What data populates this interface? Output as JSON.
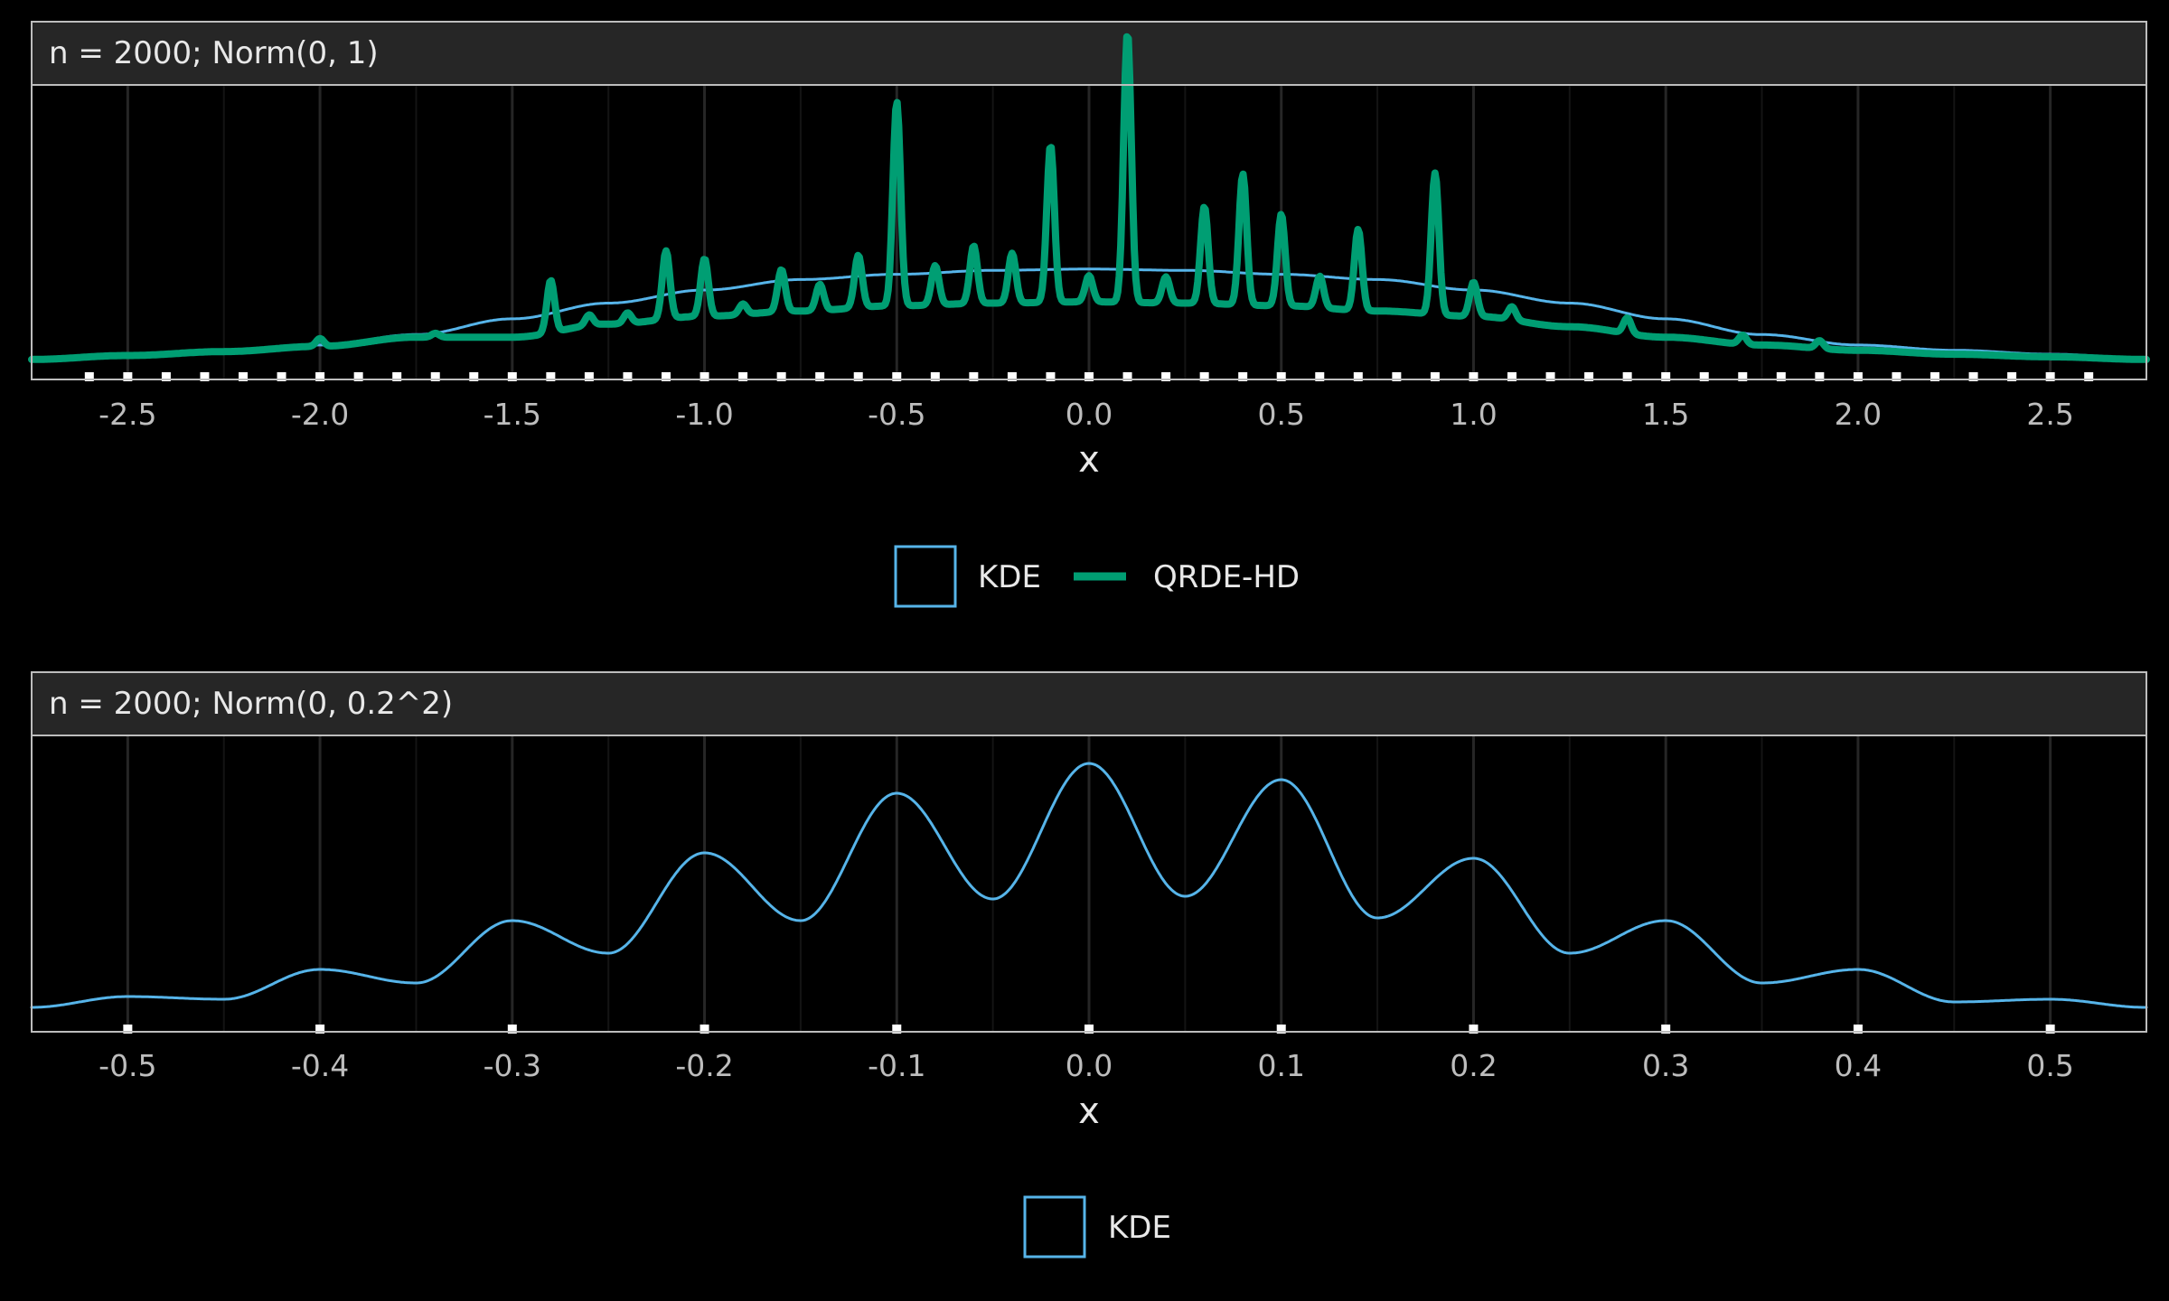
{
  "colors": {
    "background": "#000000",
    "strip": "#262626",
    "panel_border": "#bdbdbd",
    "grid_major": "#262626",
    "grid_minor": "#141414",
    "kde": "#56B4E9",
    "qrde": "#009E73",
    "rug": "#ffffff",
    "text": "#e8e8e8",
    "tick_text": "#bdbdbd"
  },
  "chart_data": [
    {
      "type": "line",
      "title": "n = 2000; Norm(0, 1)",
      "xlabel": "x",
      "ylabel": "",
      "xlim": [
        -2.75,
        2.75
      ],
      "ylim": [
        0,
        1
      ],
      "x_ticks": [
        -2.5,
        -2.0,
        -1.5,
        -1.0,
        -0.5,
        0.0,
        0.5,
        1.0,
        1.5,
        2.0,
        2.5
      ],
      "x_tick_labels": [
        "-2.5",
        "-2.0",
        "-1.5",
        "-1.0",
        "-0.5",
        "0.0",
        "0.5",
        "1.0",
        "1.5",
        "2.0",
        "2.5"
      ],
      "grid": true,
      "y_axis_labels": false,
      "rug_start": -2.6,
      "rug_step": 0.1,
      "rug_count": 53,
      "legend": {
        "position": "bottom",
        "entries": [
          {
            "label": "KDE",
            "key": "box",
            "color": "#56B4E9"
          },
          {
            "label": "QRDE-HD",
            "key": "line",
            "color": "#009E73"
          }
        ]
      },
      "series": [
        {
          "name": "KDE",
          "color": "#56B4E9",
          "stroke_width": 3,
          "x": [
            -2.75,
            -2.5,
            -2.25,
            -2.0,
            -1.75,
            -1.5,
            -1.25,
            -1.0,
            -0.75,
            -0.5,
            -0.25,
            0.0,
            0.25,
            0.5,
            0.75,
            1.0,
            1.25,
            1.5,
            1.75,
            2.0,
            2.25,
            2.5,
            2.75
          ],
          "y": [
            0.04,
            0.055,
            0.07,
            0.09,
            0.13,
            0.19,
            0.25,
            0.3,
            0.34,
            0.36,
            0.375,
            0.38,
            0.375,
            0.36,
            0.34,
            0.3,
            0.25,
            0.19,
            0.13,
            0.09,
            0.07,
            0.055,
            0.04
          ]
        },
        {
          "name": "QRDE-HD",
          "color": "#009E73",
          "stroke_width": 8,
          "x": [
            -2.75,
            -2.5,
            -2.25,
            -2.0,
            -1.75,
            -1.5,
            -1.25,
            -1.0,
            -0.75,
            -0.5,
            -0.25,
            0.0,
            0.25,
            0.5,
            0.75,
            1.0,
            1.25,
            1.5,
            1.75,
            2.0,
            2.25,
            2.5,
            2.75
          ],
          "y": [
            0.035,
            0.05,
            0.065,
            0.085,
            0.12,
            0.12,
            0.17,
            0.2,
            0.22,
            0.24,
            0.25,
            0.255,
            0.25,
            0.24,
            0.22,
            0.2,
            0.16,
            0.12,
            0.09,
            0.07,
            0.055,
            0.045,
            0.035
          ],
          "peaks": [
            {
              "x": -2.0,
              "h": 0.03
            },
            {
              "x": -1.7,
              "h": 0.015
            },
            {
              "x": -1.4,
              "h": 0.2
            },
            {
              "x": -1.3,
              "h": 0.04
            },
            {
              "x": -1.2,
              "h": 0.04
            },
            {
              "x": -1.1,
              "h": 0.26
            },
            {
              "x": -1.0,
              "h": 0.22
            },
            {
              "x": -0.9,
              "h": 0.04
            },
            {
              "x": -0.8,
              "h": 0.16
            },
            {
              "x": -0.7,
              "h": 0.1
            },
            {
              "x": -0.6,
              "h": 0.2
            },
            {
              "x": -0.5,
              "h": 0.78
            },
            {
              "x": -0.4,
              "h": 0.15
            },
            {
              "x": -0.3,
              "h": 0.22
            },
            {
              "x": -0.2,
              "h": 0.19
            },
            {
              "x": -0.1,
              "h": 0.6
            },
            {
              "x": 0.0,
              "h": 0.1
            },
            {
              "x": 0.1,
              "h": 1.03
            },
            {
              "x": 0.2,
              "h": 0.1
            },
            {
              "x": 0.3,
              "h": 0.37
            },
            {
              "x": 0.4,
              "h": 0.5
            },
            {
              "x": 0.5,
              "h": 0.35
            },
            {
              "x": 0.6,
              "h": 0.12
            },
            {
              "x": 0.7,
              "h": 0.31
            },
            {
              "x": 0.9,
              "h": 0.54
            },
            {
              "x": 1.0,
              "h": 0.13
            },
            {
              "x": 1.1,
              "h": 0.05
            },
            {
              "x": 1.4,
              "h": 0.06
            },
            {
              "x": 1.7,
              "h": 0.035
            },
            {
              "x": 1.9,
              "h": 0.03
            }
          ]
        }
      ]
    },
    {
      "type": "line",
      "title": "n = 2000; Norm(0, 0.2^2)",
      "xlabel": "x",
      "ylabel": "",
      "xlim": [
        -0.55,
        0.55
      ],
      "ylim": [
        0,
        1
      ],
      "x_ticks": [
        -0.5,
        -0.4,
        -0.3,
        -0.2,
        -0.1,
        0.0,
        0.1,
        0.2,
        0.3,
        0.4,
        0.5
      ],
      "x_tick_labels": [
        "-0.5",
        "-0.4",
        "-0.3",
        "-0.2",
        "-0.1",
        "0.0",
        "0.1",
        "0.2",
        "0.3",
        "0.4",
        "0.5"
      ],
      "grid": true,
      "y_axis_labels": false,
      "rug_start": -0.5,
      "rug_step": 0.1,
      "rug_count": 11,
      "legend": {
        "position": "bottom",
        "entries": [
          {
            "label": "KDE",
            "key": "box",
            "color": "#56B4E9"
          }
        ]
      },
      "series": [
        {
          "name": "KDE",
          "color": "#56B4E9",
          "stroke_width": 3,
          "x": [
            -0.55,
            -0.5,
            -0.45,
            -0.4,
            -0.35,
            -0.3,
            -0.25,
            -0.2,
            -0.15,
            -0.1,
            -0.05,
            0.0,
            0.05,
            0.1,
            0.15,
            0.2,
            0.25,
            0.3,
            0.35,
            0.4,
            0.45,
            0.5,
            0.55
          ],
          "y": [
            0.05,
            0.09,
            0.08,
            0.19,
            0.14,
            0.37,
            0.25,
            0.62,
            0.37,
            0.84,
            0.45,
            0.95,
            0.46,
            0.89,
            0.38,
            0.6,
            0.25,
            0.37,
            0.14,
            0.19,
            0.07,
            0.08,
            0.05
          ],
          "peaks": []
        }
      ]
    }
  ]
}
